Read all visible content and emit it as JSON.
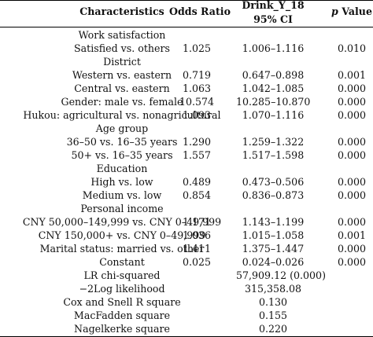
{
  "header": {
    "characteristics": "Characteristics",
    "odds_ratio": "Odds Ratio",
    "drink_line1": "Drink_Y_18",
    "drink_line2": "95% CI",
    "p_prefix": "p",
    "p_suffix": " Value"
  },
  "rows": [
    {
      "label": "Work satisfaction",
      "or": "",
      "ci": "",
      "p": ""
    },
    {
      "label": "Satisfied vs. others",
      "or": "1.025",
      "ci": "1.006–1.116",
      "p": "0.010"
    },
    {
      "label": "District",
      "or": "",
      "ci": "",
      "p": ""
    },
    {
      "label": "Western vs. eastern",
      "or": "0.719",
      "ci": "0.647–0.898",
      "p": "0.001"
    },
    {
      "label": "Central vs. eastern",
      "or": "1.063",
      "ci": "1.042–1.085",
      "p": "0.000"
    },
    {
      "label": "Gender: male vs. female",
      "or": "10.574",
      "ci": "10.285–10.870",
      "p": "0.000"
    },
    {
      "label": "Hukou: agricultural vs. nonagricultural",
      "or": "1.093",
      "ci": "1.070–1.116",
      "p": "0.000"
    },
    {
      "label": "Age group",
      "or": "",
      "ci": "",
      "p": ""
    },
    {
      "label": "36–50 vs. 16–35 years",
      "or": "1.290",
      "ci": "1.259–1.322",
      "p": "0.000"
    },
    {
      "label": "50+ vs. 16–35 years",
      "or": "1.557",
      "ci": "1.517–1.598",
      "p": "0.000"
    },
    {
      "label": "Education",
      "or": "",
      "ci": "",
      "p": ""
    },
    {
      "label": "High vs. low",
      "or": "0.489",
      "ci": "0.473–0.506",
      "p": "0.000"
    },
    {
      "label": "Medium vs. low",
      "or": "0.854",
      "ci": "0.836–0.873",
      "p": "0.000"
    },
    {
      "label": "Personal income",
      "or": "",
      "ci": "",
      "p": ""
    },
    {
      "label": "CNY 50,000–149,999 vs. CNY 0–49,999",
      "or": "1.171",
      "ci": "1.143–1.199",
      "p": "0.000"
    },
    {
      "label": "CNY 150,000+ vs. CNY 0–49,999",
      "or": "1.036",
      "ci": "1.015–1.058",
      "p": "0.001"
    },
    {
      "label": "Marital status: married vs. other",
      "or": "1.411",
      "ci": "1.375–1.447",
      "p": "0.000"
    },
    {
      "label": "Constant",
      "or": "0.025",
      "ci": "0.024–0.026",
      "p": "0.000"
    },
    {
      "label": "LR chi-squared",
      "or": "",
      "ci": "57,909.12 (0.000)",
      "p": ""
    },
    {
      "label": "−2Log likelihood",
      "or": "",
      "ci": "315,358.08",
      "p": ""
    },
    {
      "label": "Cox and Snell R square",
      "or": "",
      "ci": "0.130",
      "p": ""
    },
    {
      "label": "MacFadden square",
      "or": "",
      "ci": "0.155",
      "p": ""
    },
    {
      "label": "Nagelkerke square",
      "or": "",
      "ci": "0.220",
      "p": ""
    }
  ]
}
